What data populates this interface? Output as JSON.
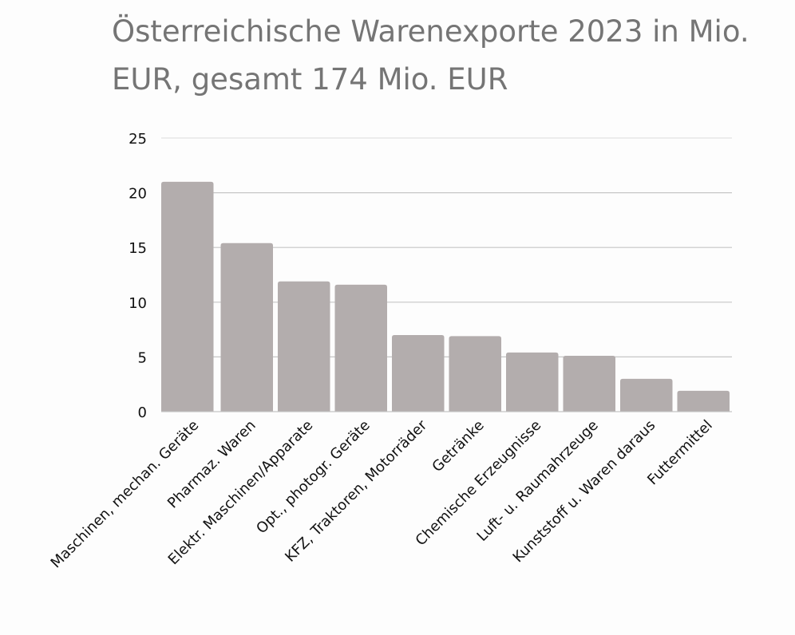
{
  "chart_data": {
    "type": "bar",
    "title": "Österreichische Warenexporte 2023 in Mio. EUR, gesamt 174 Mio. EUR",
    "categories": [
      "Maschinen, mechan. Geräte",
      "Pharmaz. Waren",
      "Elektr. Maschinen/Apparate",
      "Opt., photogr. Geräte",
      "KFZ, Traktoren, Motorräder",
      "Getränke",
      "Chemische Erzeugnisse",
      "Luft- u. Raumahrzeuge",
      "Kunststoff u. Waren daraus",
      "Futtermittel"
    ],
    "values": [
      21.0,
      15.4,
      11.9,
      11.6,
      7.0,
      6.9,
      5.4,
      5.1,
      3.0,
      1.9
    ],
    "xlabel": "",
    "ylabel": "",
    "ylim": [
      0,
      25
    ],
    "yticks": [
      "0",
      "5",
      "10",
      "15",
      "20",
      "25"
    ],
    "grid": true,
    "bar_color": "#b3adad",
    "title_color": "#757575"
  }
}
